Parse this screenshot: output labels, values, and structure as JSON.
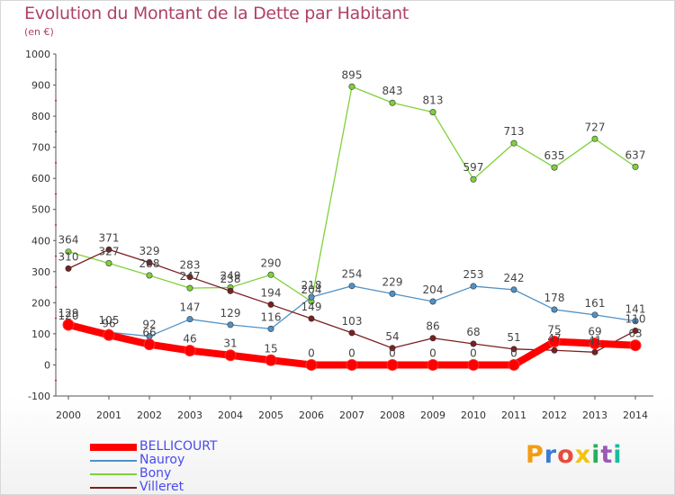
{
  "title": "Evolution du Montant de la Dette par Habitant",
  "subtitle": "(en €)",
  "logo": "Proxiti",
  "chart_data": {
    "type": "line",
    "title": "Evolution du Montant de la Dette par Habitant",
    "ylabel": "(en €)",
    "ylim": [
      -100,
      1000
    ],
    "yticks": [
      -100,
      0,
      100,
      200,
      300,
      400,
      500,
      600,
      700,
      800,
      900,
      1000
    ],
    "x": [
      "2000",
      "2001",
      "2002",
      "2003",
      "2004",
      "2005",
      "2006",
      "2007",
      "2008",
      "2009",
      "2010",
      "2011",
      "2012",
      "2013",
      "2014"
    ],
    "grid": false,
    "legend_position": "bottom-left",
    "series": [
      {
        "name": "BELLICOURT",
        "color": "#ff0000",
        "values": [
          129,
          96,
          66,
          46,
          31,
          15,
          0,
          0,
          0,
          0,
          0,
          0,
          75,
          69,
          63
        ]
      },
      {
        "name": "Nauroy",
        "color": "#4f92c8",
        "values": [
          120,
          105,
          92,
          147,
          129,
          116,
          218,
          254,
          229,
          204,
          253,
          242,
          178,
          161,
          141
        ]
      },
      {
        "name": "Bony",
        "color": "#7fd13b",
        "values": [
          364,
          327,
          288,
          247,
          249,
          290,
          204,
          895,
          843,
          813,
          597,
          713,
          635,
          727,
          637
        ]
      },
      {
        "name": "Villeret",
        "color": "#7a1f1f",
        "values": [
          310,
          371,
          329,
          283,
          238,
          194,
          149,
          103,
          54,
          86,
          68,
          51,
          47,
          41,
          110
        ]
      }
    ]
  },
  "logo_colors": [
    "#f39c12",
    "#3a7bd5",
    "#e74c3c",
    "#f1c40f",
    "#27ae60",
    "#9b59b6",
    "#1abc9c"
  ]
}
